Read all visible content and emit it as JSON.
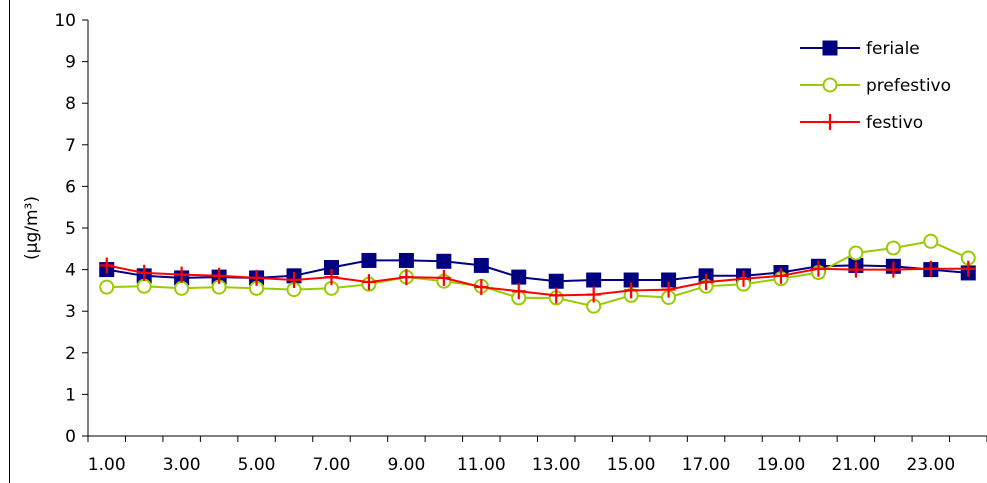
{
  "chart_data": {
    "type": "line",
    "title": "",
    "xlabel": "",
    "ylabel": "(µg/m³)",
    "ylim": [
      0,
      10
    ],
    "yticks": [
      "0",
      "1",
      "2",
      "3",
      "4",
      "5",
      "6",
      "7",
      "8",
      "9",
      "10"
    ],
    "categories": [
      "1.00",
      "2.00",
      "3.00",
      "4.00",
      "5.00",
      "6.00",
      "7.00",
      "8.00",
      "9.00",
      "10.00",
      "11.00",
      "12.00",
      "13.00",
      "14.00",
      "15.00",
      "16.00",
      "17.00",
      "18.00",
      "19.00",
      "20.00",
      "21.00",
      "22.00",
      "23.00",
      "24.00"
    ],
    "x_tick_labels": [
      "1.00",
      "3.00",
      "5.00",
      "7.00",
      "9.00",
      "11.00",
      "13.00",
      "15.00",
      "17.00",
      "19.00",
      "21.00",
      "23.00"
    ],
    "grid": false,
    "legend_position": "top-right",
    "series": [
      {
        "name": "feriale",
        "color": "#000080",
        "marker": "square",
        "values": [
          4.0,
          3.85,
          3.8,
          3.82,
          3.8,
          3.85,
          4.05,
          4.22,
          4.22,
          4.2,
          4.1,
          3.82,
          3.72,
          3.75,
          3.75,
          3.75,
          3.85,
          3.85,
          3.93,
          4.08,
          4.1,
          4.08,
          4.0,
          3.92
        ]
      },
      {
        "name": "prefestivo",
        "color": "#99CC00",
        "marker": "circle",
        "values": [
          3.58,
          3.6,
          3.55,
          3.58,
          3.55,
          3.52,
          3.55,
          3.65,
          3.82,
          3.72,
          3.6,
          3.32,
          3.32,
          3.12,
          3.38,
          3.33,
          3.6,
          3.65,
          3.78,
          3.93,
          4.4,
          4.52,
          4.68,
          4.28
        ]
      },
      {
        "name": "festivo",
        "color": "#FF0000",
        "marker": "plus",
        "values": [
          4.1,
          3.92,
          3.88,
          3.85,
          3.8,
          3.75,
          3.82,
          3.7,
          3.82,
          3.8,
          3.58,
          3.48,
          3.38,
          3.4,
          3.5,
          3.52,
          3.7,
          3.78,
          3.85,
          4.02,
          4.0,
          4.0,
          4.02,
          4.02
        ]
      }
    ]
  }
}
